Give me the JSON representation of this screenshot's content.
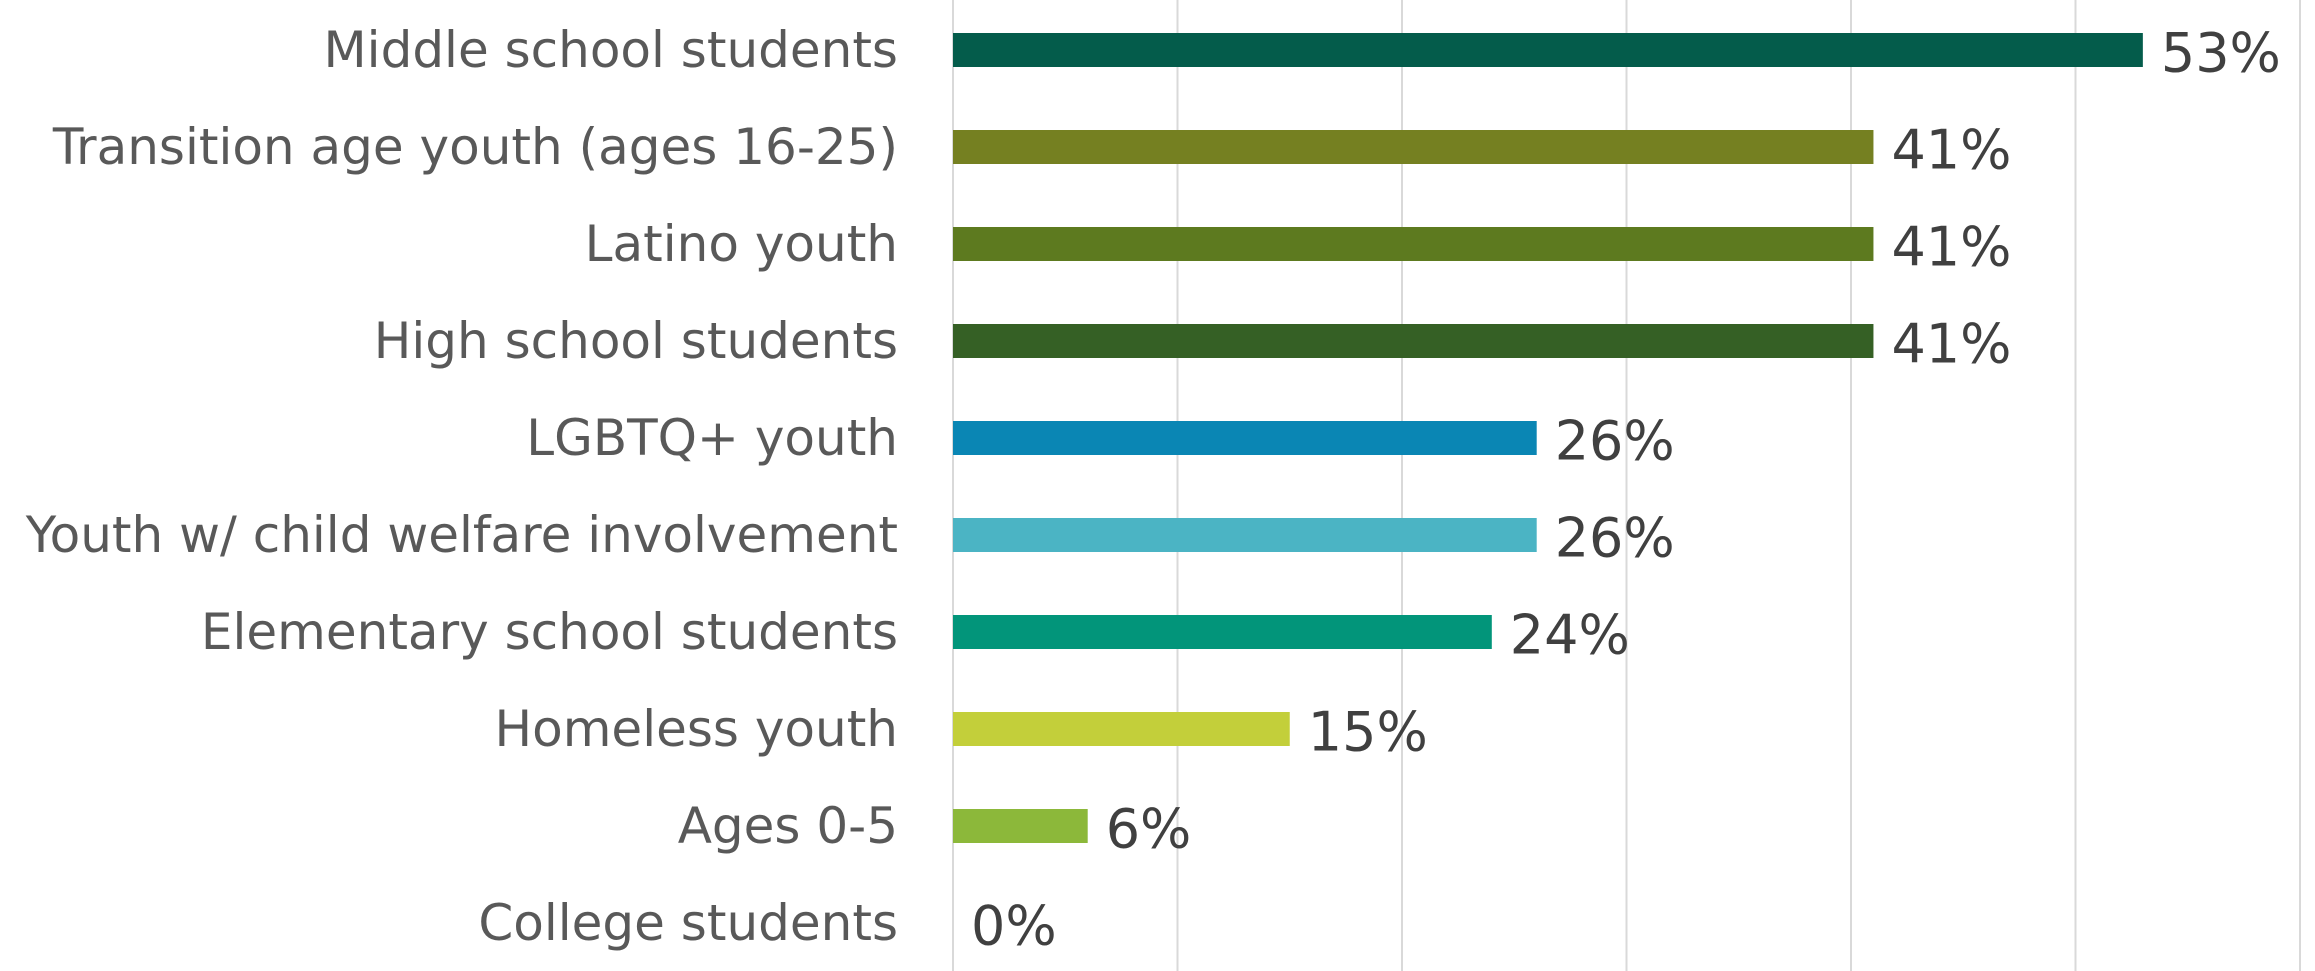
{
  "chart_data": {
    "type": "bar",
    "orientation": "horizontal",
    "categories": [
      "Middle school students",
      "Transition age youth (ages 16-25)",
      "Latino youth",
      "High school students",
      "LGBTQ+ youth",
      "Youth w/ child welfare involvement",
      "Elementary school students",
      "Homeless youth",
      "Ages 0-5",
      "College students"
    ],
    "values": [
      53,
      41,
      41,
      41,
      26,
      26,
      24,
      15,
      6,
      0
    ],
    "value_labels": [
      "53%",
      "41%",
      "41%",
      "41%",
      "26%",
      "26%",
      "24%",
      "15%",
      "6%",
      "0%"
    ],
    "bar_colors": [
      "#045C4B",
      "#758021",
      "#5D7A1F",
      "#356025",
      "#0A86B4",
      "#4BB4C4",
      "#02957A",
      "#C3CF3A",
      "#8CB83A",
      "#8CB83A"
    ],
    "xlim": [
      0,
      60
    ],
    "x_grid_step": 10,
    "grid": true,
    "legend": "none",
    "title": "",
    "xlabel": "",
    "ylabel": ""
  }
}
